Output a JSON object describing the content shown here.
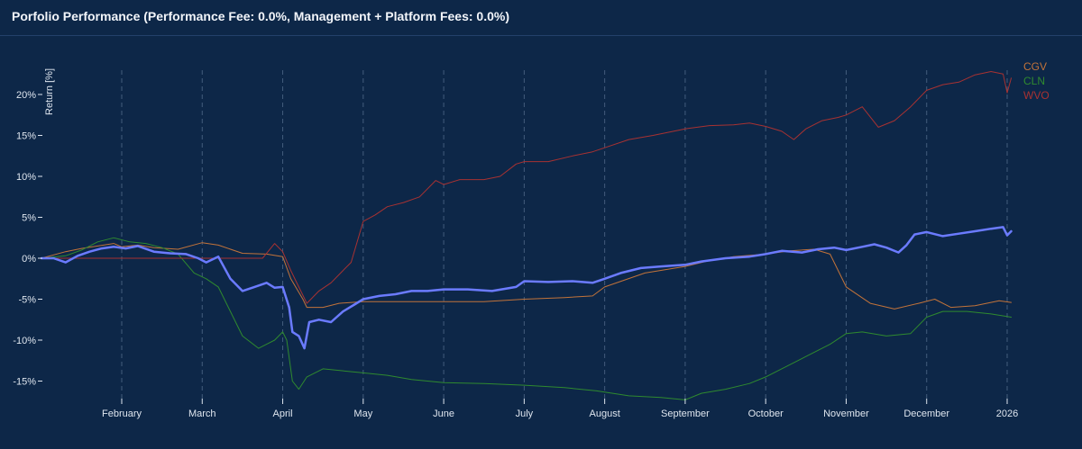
{
  "header": {
    "title": "Porfolio Performance (Performance Fee: 0.0%, Management + Platform Fees: 0.0%)"
  },
  "colors": {
    "background": "#0d2748",
    "grid": "#5a7393",
    "portfolio": "#6b7bff",
    "CGV": "#c2733a",
    "CLN": "#2f8a2f",
    "WVO": "#a83232"
  },
  "chart_data": {
    "type": "line",
    "title": "Porfolio Performance (Performance Fee: 0.0%, Management + Platform Fees: 0.0%)",
    "xlabel": "",
    "ylabel": "Return [%]",
    "ylim": [
      -16.5,
      24
    ],
    "xlim": [
      0,
      12.1
    ],
    "grid": "vertical dashed at month ticks",
    "legend": "top-right",
    "x_ticks": [
      {
        "pos": 1,
        "label": "February"
      },
      {
        "pos": 2,
        "label": "March"
      },
      {
        "pos": 3,
        "label": "April"
      },
      {
        "pos": 4,
        "label": "May"
      },
      {
        "pos": 5,
        "label": "June"
      },
      {
        "pos": 6,
        "label": "July"
      },
      {
        "pos": 7,
        "label": "August"
      },
      {
        "pos": 8,
        "label": "September"
      },
      {
        "pos": 9,
        "label": "October"
      },
      {
        "pos": 10,
        "label": "November"
      },
      {
        "pos": 11,
        "label": "December"
      },
      {
        "pos": 12,
        "label": "2026"
      }
    ],
    "y_ticks": [
      {
        "value": 20,
        "label": "20%"
      },
      {
        "value": 15,
        "label": "15%"
      },
      {
        "value": 10,
        "label": "10%"
      },
      {
        "value": 5,
        "label": "5%"
      },
      {
        "value": 0,
        "label": "0%"
      },
      {
        "value": -5,
        "label": "-5%"
      },
      {
        "value": -10,
        "label": "-10%"
      },
      {
        "value": -15,
        "label": "-15%"
      }
    ],
    "legend_entries": [
      "CGV",
      "CLN",
      "WVO"
    ],
    "series": [
      {
        "name": "Portfolio",
        "color": "#6b7bff",
        "width": 2.5,
        "points": [
          [
            0,
            0
          ],
          [
            0.15,
            0
          ],
          [
            0.3,
            -0.5
          ],
          [
            0.45,
            0.3
          ],
          [
            0.6,
            0.8
          ],
          [
            0.75,
            1.2
          ],
          [
            0.9,
            1.4
          ],
          [
            1.05,
            1.2
          ],
          [
            1.2,
            1.5
          ],
          [
            1.4,
            0.8
          ],
          [
            1.6,
            0.6
          ],
          [
            1.8,
            0.5
          ],
          [
            1.95,
            0
          ],
          [
            2.05,
            -0.5
          ],
          [
            2.2,
            0.2
          ],
          [
            2.35,
            -2.5
          ],
          [
            2.5,
            -4
          ],
          [
            2.65,
            -3.5
          ],
          [
            2.8,
            -3
          ],
          [
            2.9,
            -3.6
          ],
          [
            3.0,
            -3.5
          ],
          [
            3.08,
            -6
          ],
          [
            3.12,
            -9
          ],
          [
            3.2,
            -9.5
          ],
          [
            3.27,
            -11
          ],
          [
            3.33,
            -7.8
          ],
          [
            3.45,
            -7.5
          ],
          [
            3.6,
            -7.8
          ],
          [
            3.75,
            -6.5
          ],
          [
            3.9,
            -5.6
          ],
          [
            4.0,
            -5
          ],
          [
            4.2,
            -4.6
          ],
          [
            4.4,
            -4.4
          ],
          [
            4.6,
            -4
          ],
          [
            4.8,
            -4
          ],
          [
            5.0,
            -3.8
          ],
          [
            5.3,
            -3.8
          ],
          [
            5.6,
            -4
          ],
          [
            5.9,
            -3.5
          ],
          [
            6.0,
            -2.8
          ],
          [
            6.3,
            -2.9
          ],
          [
            6.6,
            -2.8
          ],
          [
            6.85,
            -3
          ],
          [
            7.0,
            -2.5
          ],
          [
            7.2,
            -1.8
          ],
          [
            7.45,
            -1.2
          ],
          [
            7.7,
            -1
          ],
          [
            8.0,
            -0.8
          ],
          [
            8.2,
            -0.4
          ],
          [
            8.5,
            0
          ],
          [
            8.8,
            0.2
          ],
          [
            9.0,
            0.5
          ],
          [
            9.2,
            0.9
          ],
          [
            9.45,
            0.7
          ],
          [
            9.65,
            1.1
          ],
          [
            9.85,
            1.3
          ],
          [
            10.0,
            1.0
          ],
          [
            10.2,
            1.4
          ],
          [
            10.35,
            1.7
          ],
          [
            10.5,
            1.3
          ],
          [
            10.65,
            0.7
          ],
          [
            10.75,
            1.6
          ],
          [
            10.85,
            2.9
          ],
          [
            11.0,
            3.2
          ],
          [
            11.2,
            2.7
          ],
          [
            11.4,
            3.0
          ],
          [
            11.6,
            3.3
          ],
          [
            11.8,
            3.6
          ],
          [
            11.95,
            3.8
          ],
          [
            12.0,
            2.8
          ],
          [
            12.05,
            3.3
          ]
        ]
      },
      {
        "name": "CGV",
        "color": "#c2733a",
        "width": 1,
        "points": [
          [
            0,
            0
          ],
          [
            0.3,
            0.8
          ],
          [
            0.5,
            1.2
          ],
          [
            0.7,
            1.5
          ],
          [
            0.9,
            1.8
          ],
          [
            1.0,
            1.4
          ],
          [
            1.2,
            1.6
          ],
          [
            1.4,
            1.3
          ],
          [
            1.7,
            1.1
          ],
          [
            2.0,
            1.9
          ],
          [
            2.2,
            1.6
          ],
          [
            2.5,
            0.6
          ],
          [
            2.8,
            0.5
          ],
          [
            3.0,
            0.2
          ],
          [
            3.1,
            -2.5
          ],
          [
            3.25,
            -5
          ],
          [
            3.3,
            -6
          ],
          [
            3.5,
            -6
          ],
          [
            3.7,
            -5.5
          ],
          [
            4.0,
            -5.3
          ],
          [
            4.5,
            -5.3
          ],
          [
            5.0,
            -5.3
          ],
          [
            5.5,
            -5.3
          ],
          [
            6.0,
            -5
          ],
          [
            6.5,
            -4.8
          ],
          [
            6.85,
            -4.6
          ],
          [
            7.0,
            -3.5
          ],
          [
            7.5,
            -1.8
          ],
          [
            8.0,
            -1
          ],
          [
            8.3,
            -0.3
          ],
          [
            8.6,
            0.2
          ],
          [
            9.0,
            0.5
          ],
          [
            9.3,
            0.9
          ],
          [
            9.6,
            1.1
          ],
          [
            9.8,
            0.5
          ],
          [
            10.0,
            -3.5
          ],
          [
            10.3,
            -5.5
          ],
          [
            10.6,
            -6.2
          ],
          [
            10.9,
            -5.5
          ],
          [
            11.1,
            -5
          ],
          [
            11.3,
            -6
          ],
          [
            11.6,
            -5.8
          ],
          [
            11.9,
            -5.2
          ],
          [
            12.05,
            -5.4
          ]
        ]
      },
      {
        "name": "CLN",
        "color": "#2f8a2f",
        "width": 1,
        "points": [
          [
            0,
            0
          ],
          [
            0.3,
            0.3
          ],
          [
            0.5,
            1.0
          ],
          [
            0.7,
            2.0
          ],
          [
            0.9,
            2.5
          ],
          [
            1.1,
            2.0
          ],
          [
            1.3,
            1.8
          ],
          [
            1.5,
            1.3
          ],
          [
            1.7,
            0.5
          ],
          [
            1.9,
            -1.8
          ],
          [
            2.05,
            -2.5
          ],
          [
            2.2,
            -3.5
          ],
          [
            2.35,
            -6.5
          ],
          [
            2.5,
            -9.5
          ],
          [
            2.7,
            -11
          ],
          [
            2.9,
            -10
          ],
          [
            3.0,
            -9
          ],
          [
            3.05,
            -10
          ],
          [
            3.12,
            -15
          ],
          [
            3.2,
            -16
          ],
          [
            3.3,
            -14.5
          ],
          [
            3.5,
            -13.5
          ],
          [
            3.8,
            -13.8
          ],
          [
            4.0,
            -14
          ],
          [
            4.3,
            -14.3
          ],
          [
            4.6,
            -14.8
          ],
          [
            5.0,
            -15.2
          ],
          [
            5.5,
            -15.3
          ],
          [
            6.0,
            -15.5
          ],
          [
            6.5,
            -15.8
          ],
          [
            6.9,
            -16.2
          ],
          [
            7.3,
            -16.8
          ],
          [
            7.7,
            -17
          ],
          [
            8.0,
            -17.3
          ],
          [
            8.2,
            -16.5
          ],
          [
            8.5,
            -16.0
          ],
          [
            8.8,
            -15.3
          ],
          [
            9.0,
            -14.5
          ],
          [
            9.3,
            -13
          ],
          [
            9.5,
            -12
          ],
          [
            9.8,
            -10.5
          ],
          [
            10.0,
            -9.2
          ],
          [
            10.2,
            -9
          ],
          [
            10.5,
            -9.5
          ],
          [
            10.8,
            -9.2
          ],
          [
            11.0,
            -7.2
          ],
          [
            11.2,
            -6.5
          ],
          [
            11.5,
            -6.5
          ],
          [
            11.8,
            -6.8
          ],
          [
            12.05,
            -7.2
          ]
        ]
      },
      {
        "name": "WVO",
        "color": "#a83232",
        "width": 1,
        "points": [
          [
            0,
            0
          ],
          [
            0.5,
            0
          ],
          [
            1.0,
            0
          ],
          [
            1.5,
            0
          ],
          [
            2.0,
            0
          ],
          [
            2.5,
            0
          ],
          [
            2.75,
            0
          ],
          [
            2.9,
            1.8
          ],
          [
            3.0,
            0.8
          ],
          [
            3.1,
            -1.5
          ],
          [
            3.2,
            -3.5
          ],
          [
            3.3,
            -5.5
          ],
          [
            3.45,
            -4
          ],
          [
            3.6,
            -3
          ],
          [
            3.75,
            -1.5
          ],
          [
            3.85,
            -0.5
          ],
          [
            4.0,
            4.5
          ],
          [
            4.15,
            5.3
          ],
          [
            4.3,
            6.3
          ],
          [
            4.5,
            6.8
          ],
          [
            4.7,
            7.5
          ],
          [
            4.9,
            9.5
          ],
          [
            5.0,
            9.0
          ],
          [
            5.2,
            9.6
          ],
          [
            5.5,
            9.6
          ],
          [
            5.7,
            10
          ],
          [
            5.9,
            11.5
          ],
          [
            6.0,
            11.8
          ],
          [
            6.3,
            11.8
          ],
          [
            6.6,
            12.5
          ],
          [
            6.85,
            13
          ],
          [
            7.0,
            13.5
          ],
          [
            7.3,
            14.5
          ],
          [
            7.6,
            15
          ],
          [
            8.0,
            15.8
          ],
          [
            8.3,
            16.2
          ],
          [
            8.6,
            16.3
          ],
          [
            8.8,
            16.5
          ],
          [
            9.0,
            16.1
          ],
          [
            9.2,
            15.5
          ],
          [
            9.35,
            14.5
          ],
          [
            9.5,
            15.8
          ],
          [
            9.7,
            16.8
          ],
          [
            9.9,
            17.2
          ],
          [
            10.0,
            17.5
          ],
          [
            10.2,
            18.5
          ],
          [
            10.4,
            16
          ],
          [
            10.6,
            16.8
          ],
          [
            10.8,
            18.5
          ],
          [
            11.0,
            20.5
          ],
          [
            11.2,
            21.2
          ],
          [
            11.4,
            21.5
          ],
          [
            11.6,
            22.4
          ],
          [
            11.8,
            22.8
          ],
          [
            11.95,
            22.5
          ],
          [
            12.0,
            20.2
          ],
          [
            12.05,
            22
          ]
        ]
      }
    ]
  }
}
